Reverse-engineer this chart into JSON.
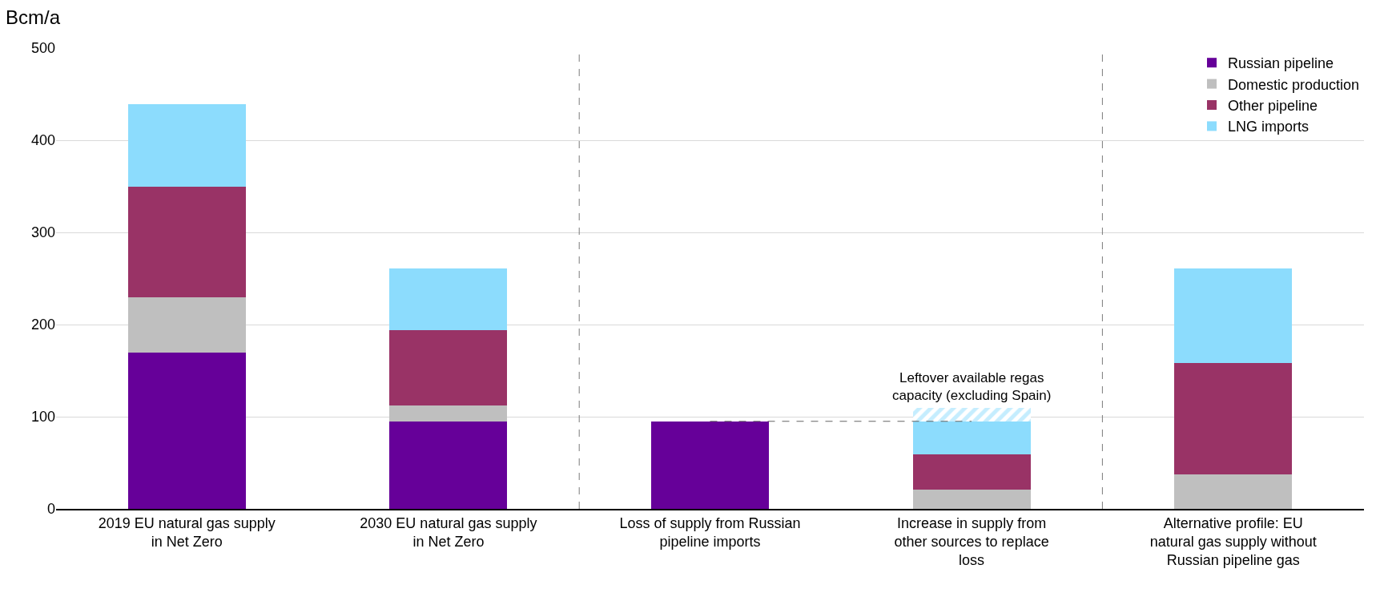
{
  "chart_data": {
    "type": "bar",
    "stacked": true,
    "ylabel": "Bcm/a",
    "categories": [
      "2019 EU natural gas supply in Net Zero",
      "2030 EU natural gas supply in Net Zero",
      "Loss of supply from Russian pipeline imports",
      "Increase in supply from other sources to replace loss",
      "Alternative profile: EU natural gas supply without Russian pipeline gas"
    ],
    "series": [
      {
        "name": "Russian pipeline",
        "color": "#660099",
        "values": [
          170,
          95,
          95,
          null,
          null
        ]
      },
      {
        "name": "Domestic production",
        "color": "#bfbfbf",
        "values": [
          60,
          17,
          null,
          21,
          37
        ]
      },
      {
        "name": "Other pipeline",
        "color": "#993366",
        "values": [
          120,
          82,
          null,
          38,
          121
        ]
      },
      {
        "name": "LNG imports",
        "color": "#8cdcfd",
        "values": [
          89,
          67,
          null,
          36,
          103
        ]
      },
      {
        "color": "#8cdcfd",
        "values": [
          null,
          null,
          null,
          15,
          null
        ]
      },
      {
        "type": "line",
        "color": "#666666",
        "line_style": "dashed",
        "x": [
          "Loss of supply from Russian pipeline imports",
          "Increase in supply from other sources to replace loss"
        ],
        "values": [
          95,
          95
        ]
      }
    ],
    "ylim": [
      0,
      500
    ],
    "yticks": [
      0,
      100,
      200,
      300,
      400,
      500
    ],
    "grid": "y",
    "legend": "top right",
    "annotations": [
      {
        "text": "Leftover available regas capacity (excluding Spain)",
        "x": "Increase in supply from other sources to replace loss",
        "y": 110
      }
    ]
  }
}
